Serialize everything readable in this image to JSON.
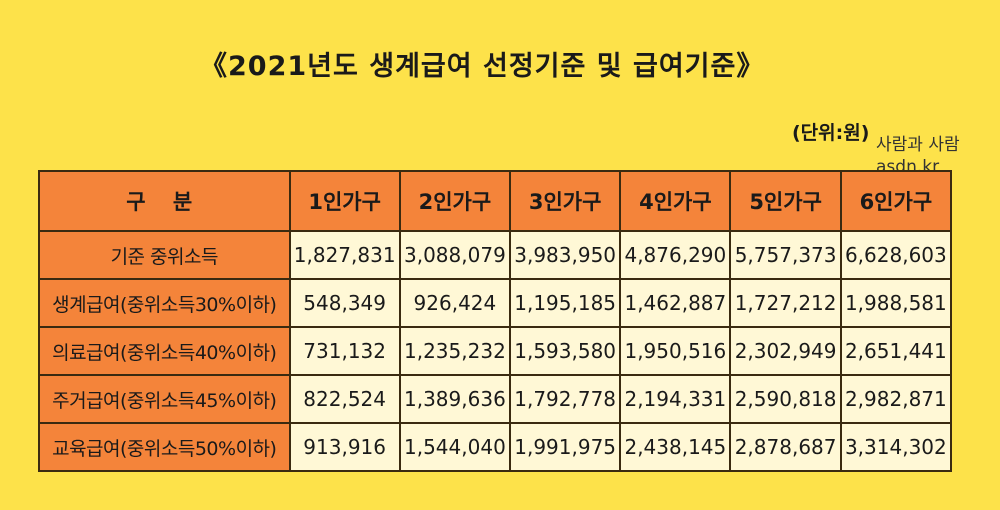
{
  "title": "《2021년도 생계급여 선정기준 및 급여기준》",
  "unit": "(단위:원)",
  "watermark": {
    "line1": "사람과 사람",
    "line2": "asdn.kr"
  },
  "table": {
    "headers": [
      "구 분",
      "1인가구",
      "2인가구",
      "3인가구",
      "4인가구",
      "5인가구",
      "6인가구"
    ],
    "rows": [
      {
        "label": "기준 중위소득",
        "values": [
          "1,827,831",
          "3,088,079",
          "3,983,950",
          "4,876,290",
          "5,757,373",
          "6,628,603"
        ]
      },
      {
        "label": "생계급여(중위소득30%이하)",
        "values": [
          "548,349",
          "926,424",
          "1,195,185",
          "1,462,887",
          "1,727,212",
          "1,988,581"
        ]
      },
      {
        "label": "의료급여(중위소득40%이하)",
        "values": [
          "731,132",
          "1,235,232",
          "1,593,580",
          "1,950,516",
          "2,302,949",
          "2,651,441"
        ]
      },
      {
        "label": "주거급여(중위소득45%이하)",
        "values": [
          "822,524",
          "1,389,636",
          "1,792,778",
          "2,194,331",
          "2,590,818",
          "2,982,871"
        ]
      },
      {
        "label": "교육급여(중위소득50%이하)",
        "values": [
          "913,916",
          "1,544,040",
          "1,991,975",
          "2,438,145",
          "2,878,687",
          "3,314,302"
        ]
      }
    ]
  }
}
